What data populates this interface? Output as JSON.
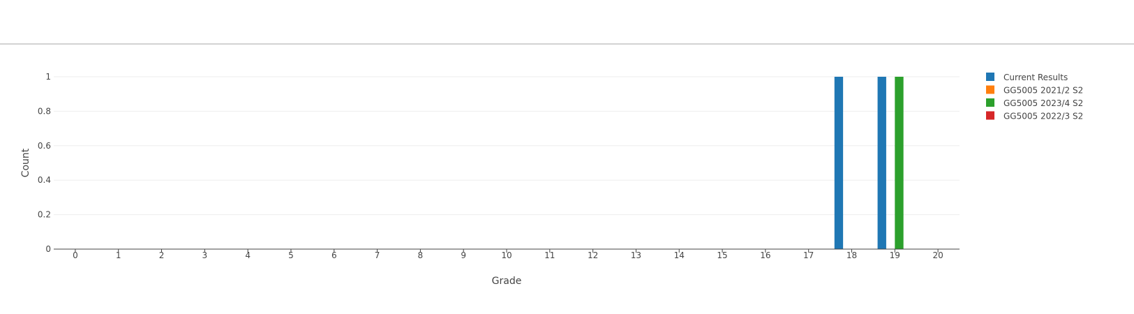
{
  "chart_data": {
    "type": "bar",
    "xlabel": "Grade",
    "ylabel": "Count",
    "categories": [
      "0",
      "1",
      "2",
      "3",
      "4",
      "5",
      "6",
      "7",
      "8",
      "9",
      "10",
      "11",
      "12",
      "13",
      "14",
      "15",
      "16",
      "17",
      "18",
      "19",
      "20"
    ],
    "ylim": [
      0,
      1
    ],
    "yticks": [
      "0",
      "0.2",
      "0.4",
      "0.6",
      "0.8",
      "1"
    ],
    "ytick_values": [
      0,
      0.2,
      0.4,
      0.6,
      0.8,
      1
    ],
    "grid": true,
    "legend_position": "top-right",
    "series": [
      {
        "name": "Current Results",
        "color": "#1f77b4",
        "values": [
          0,
          0,
          0,
          0,
          0,
          0,
          0,
          0,
          0,
          0,
          0,
          0,
          0,
          0,
          0,
          0,
          0,
          0,
          1,
          1,
          0
        ]
      },
      {
        "name": "GG5005 2021/2 S2",
        "color": "#ff7f0e",
        "values": [
          0,
          0,
          0,
          0,
          0,
          0,
          0,
          0,
          0,
          0,
          0,
          0,
          0,
          0,
          0,
          0,
          0,
          0,
          0,
          0,
          0
        ]
      },
      {
        "name": "GG5005 2023/4 S2",
        "color": "#2ca02c",
        "values": [
          0,
          0,
          0,
          0,
          0,
          0,
          0,
          0,
          0,
          0,
          0,
          0,
          0,
          0,
          0,
          0,
          0,
          0,
          0,
          1,
          0
        ]
      },
      {
        "name": "GG5005 2022/3 S2",
        "color": "#d62728",
        "values": [
          0,
          0,
          0,
          0,
          0,
          0,
          0,
          0,
          0,
          0,
          0,
          0,
          0,
          0,
          0,
          0,
          0,
          0,
          0,
          0,
          0
        ]
      }
    ]
  }
}
